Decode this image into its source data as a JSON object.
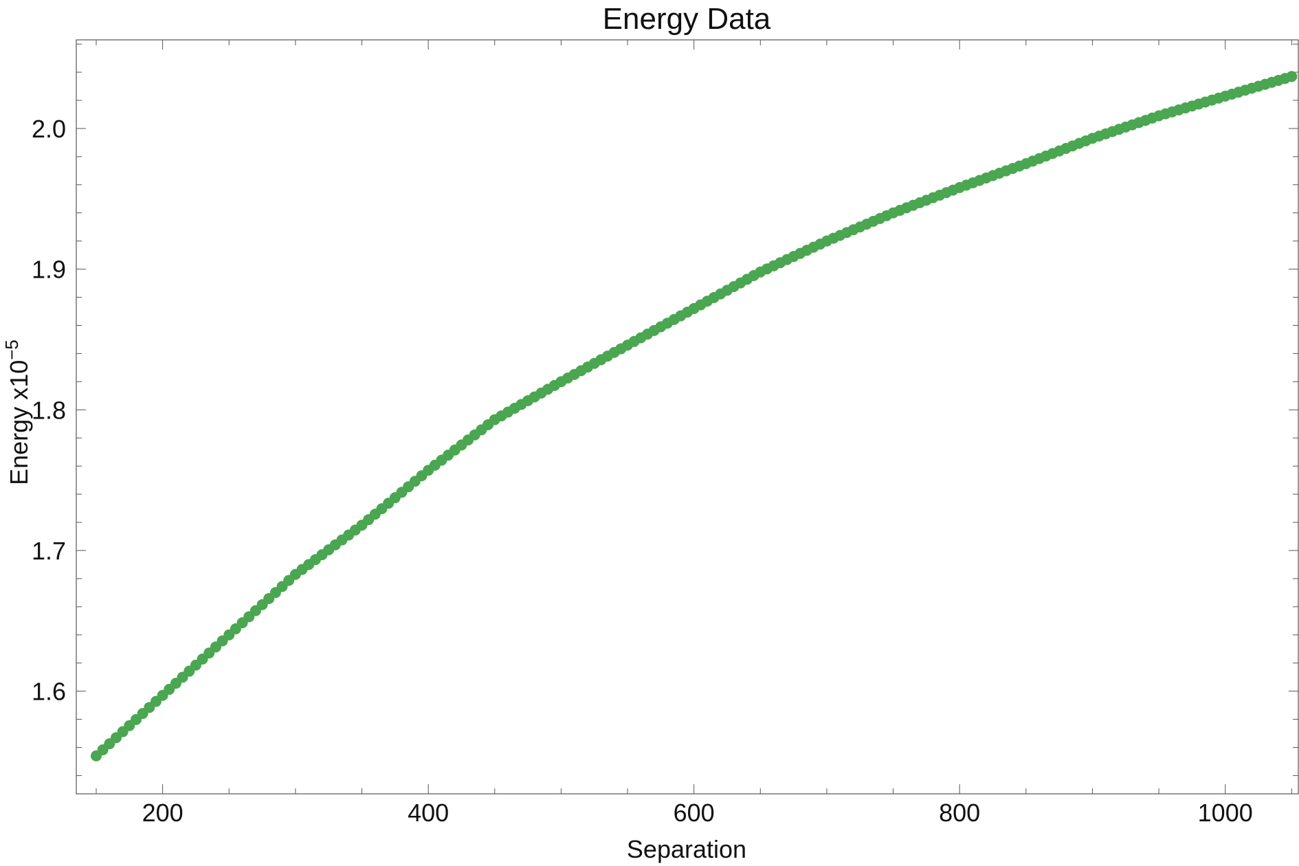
{
  "chart_data": {
    "type": "scatter",
    "title": "Energy Data",
    "xlabel": "Separation",
    "ylabel": "Energy x10",
    "ylabel_exponent": "−5",
    "xlim": [
      135,
      1055
    ],
    "ylim": [
      1.527,
      2.063
    ],
    "x_ticks": [
      200,
      400,
      600,
      800,
      1000
    ],
    "x_tick_labels": [
      "200",
      "400",
      "600",
      "800",
      "1000"
    ],
    "y_ticks": [
      1.6,
      1.7,
      1.8,
      1.9,
      2.0
    ],
    "y_tick_labels": [
      "1.6",
      "1.7",
      "1.8",
      "1.9",
      "2.0"
    ],
    "grid": false,
    "series": [
      {
        "color": "#4aa651",
        "marker": "circle",
        "x_start": 150,
        "x_end": 1050,
        "x_step": 5,
        "anchor_points": [
          [
            150,
            1.554
          ],
          [
            200,
            1.597
          ],
          [
            250,
            1.64
          ],
          [
            300,
            1.683
          ],
          [
            350,
            1.718
          ],
          [
            400,
            1.757
          ],
          [
            450,
            1.793
          ],
          [
            500,
            1.82
          ],
          [
            550,
            1.846
          ],
          [
            600,
            1.872
          ],
          [
            650,
            1.898
          ],
          [
            700,
            1.92
          ],
          [
            750,
            1.94
          ],
          [
            800,
            1.958
          ],
          [
            850,
            1.975
          ],
          [
            900,
            1.993
          ],
          [
            950,
            2.009
          ],
          [
            1000,
            2.023
          ],
          [
            1050,
            2.037
          ]
        ]
      }
    ]
  }
}
